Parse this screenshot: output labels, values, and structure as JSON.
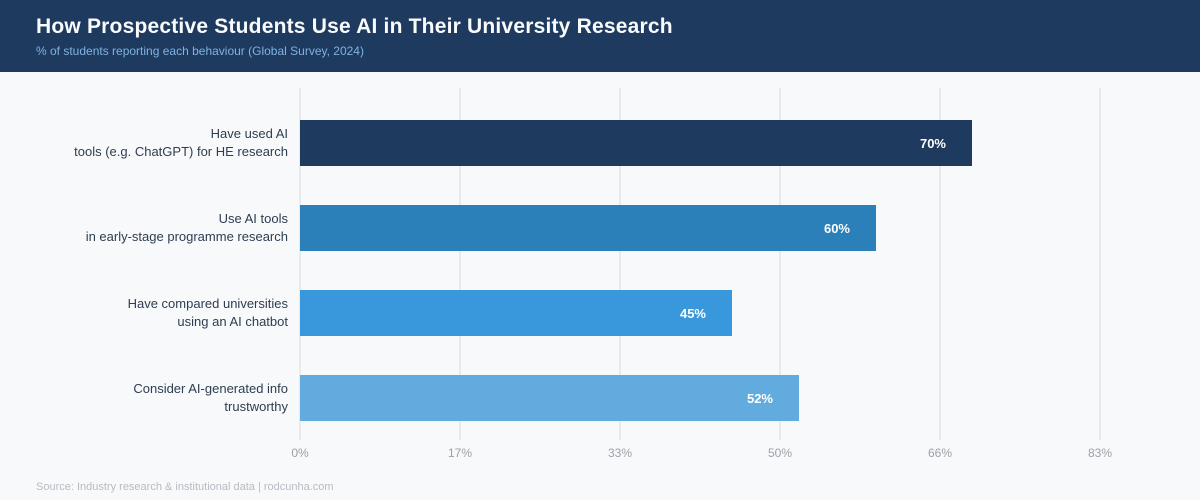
{
  "header": {
    "title": "How Prospective Students Use AI in Their University Research",
    "subtitle": "% of students reporting each behaviour (Global Survey, 2024)"
  },
  "chart_data": {
    "type": "bar",
    "orientation": "horizontal",
    "title": "How Prospective Students Use AI in Their University Research",
    "subtitle": "% of students reporting each behaviour (Global Survey, 2024)",
    "categories": [
      "Have used AI\ntools (e.g. ChatGPT) for HE research",
      "Use AI tools\nin early-stage programme research",
      "Have compared universities\nusing an AI chatbot",
      "Consider AI-generated info\ntrustworthy"
    ],
    "values": [
      70,
      60,
      45,
      52
    ],
    "value_labels": [
      "70%",
      "60%",
      "45%",
      "52%"
    ],
    "bar_colors": [
      "#1e3a5f",
      "#2b80ba",
      "#3998dc",
      "#61abdf"
    ],
    "x_ticks": [
      "0%",
      "17%",
      "33%",
      "50%",
      "66%",
      "83%"
    ],
    "x_tick_values": [
      0,
      16.67,
      33.33,
      50,
      66.67,
      83.33
    ],
    "xlim": [
      0,
      83.33
    ],
    "grid": true,
    "legend": false
  },
  "footer": {
    "source": "Source: Industry research & institutional data | rodcunha.com"
  },
  "colors": {
    "header_bg": "#1e3a5f",
    "title_text": "#fafbfd",
    "subtitle_text": "#7fb2e5",
    "plot_bg": "#f8f9fb",
    "gridline": "#e8ebee",
    "tick_text": "#9aa1a9",
    "category_text": "#2e3d50",
    "value_text": "#ffffff",
    "footer_text": "#b6bcc3"
  }
}
